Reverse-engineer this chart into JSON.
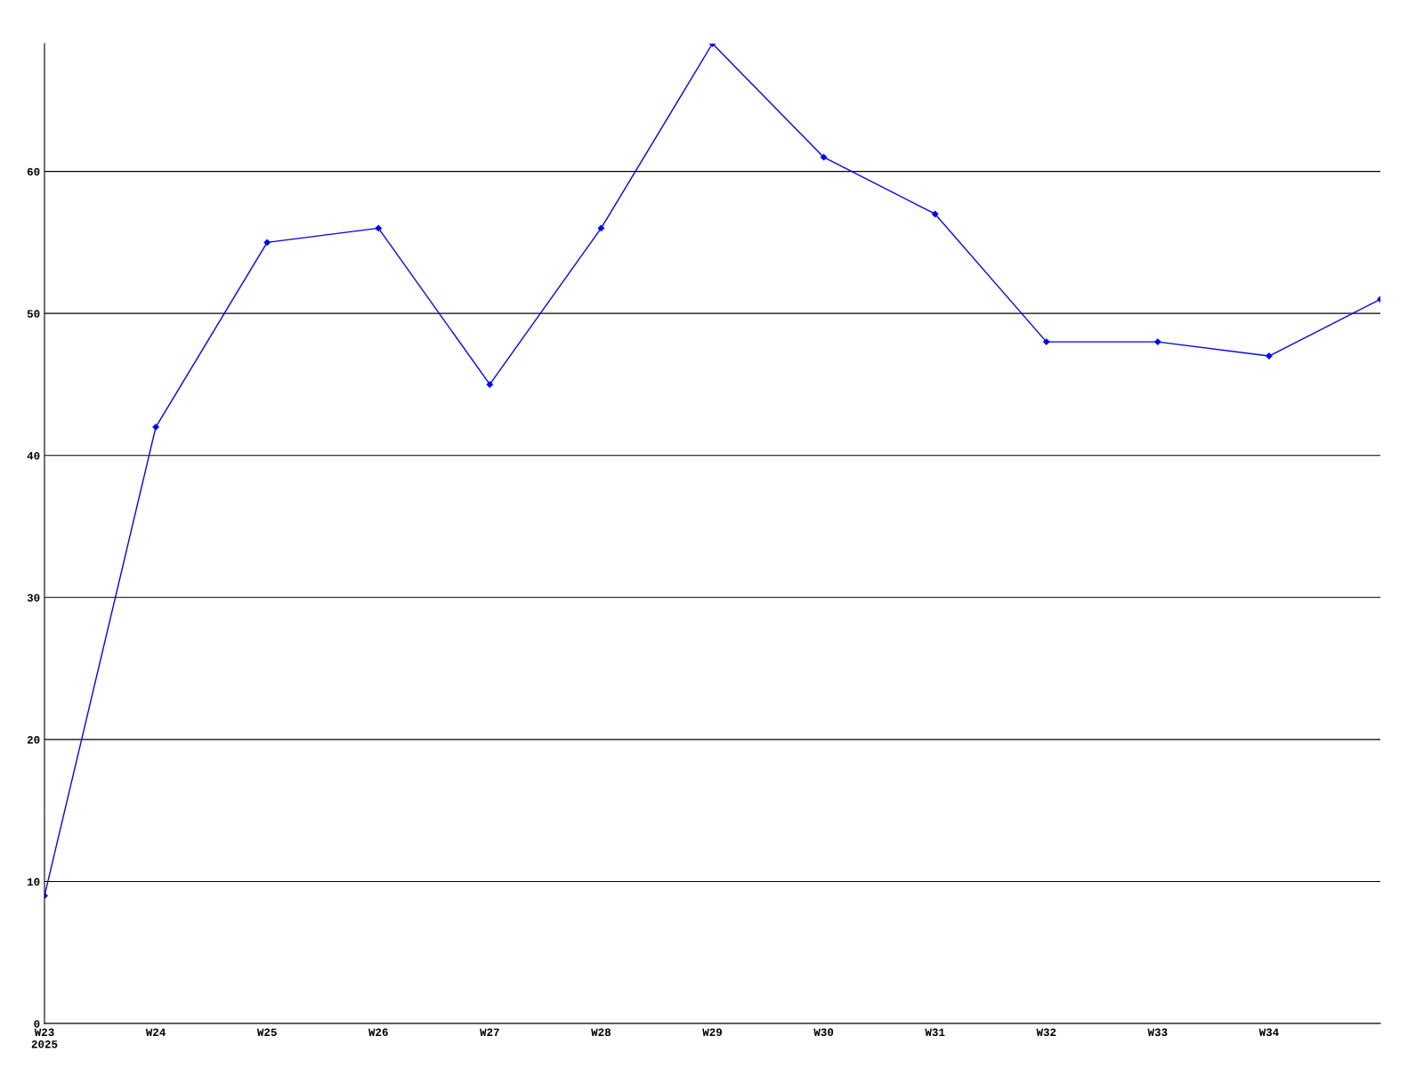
{
  "chart_data": {
    "type": "line",
    "categories": [
      "W23\n2025",
      "W24",
      "W25",
      "W26",
      "W27",
      "W28",
      "W29",
      "W30",
      "W31",
      "W32",
      "W33",
      "W34",
      null
    ],
    "series": [
      {
        "color": "#0000ff",
        "values": [
          9,
          42,
          55,
          56,
          45,
          56,
          69,
          61,
          57,
          48,
          48,
          47,
          51
        ]
      }
    ],
    "ylim": [
      0,
      69
    ],
    "yticks": [
      0,
      10,
      20,
      30,
      40,
      50,
      60
    ],
    "grid": "y",
    "marker": "diamond",
    "line_style": "solid"
  }
}
